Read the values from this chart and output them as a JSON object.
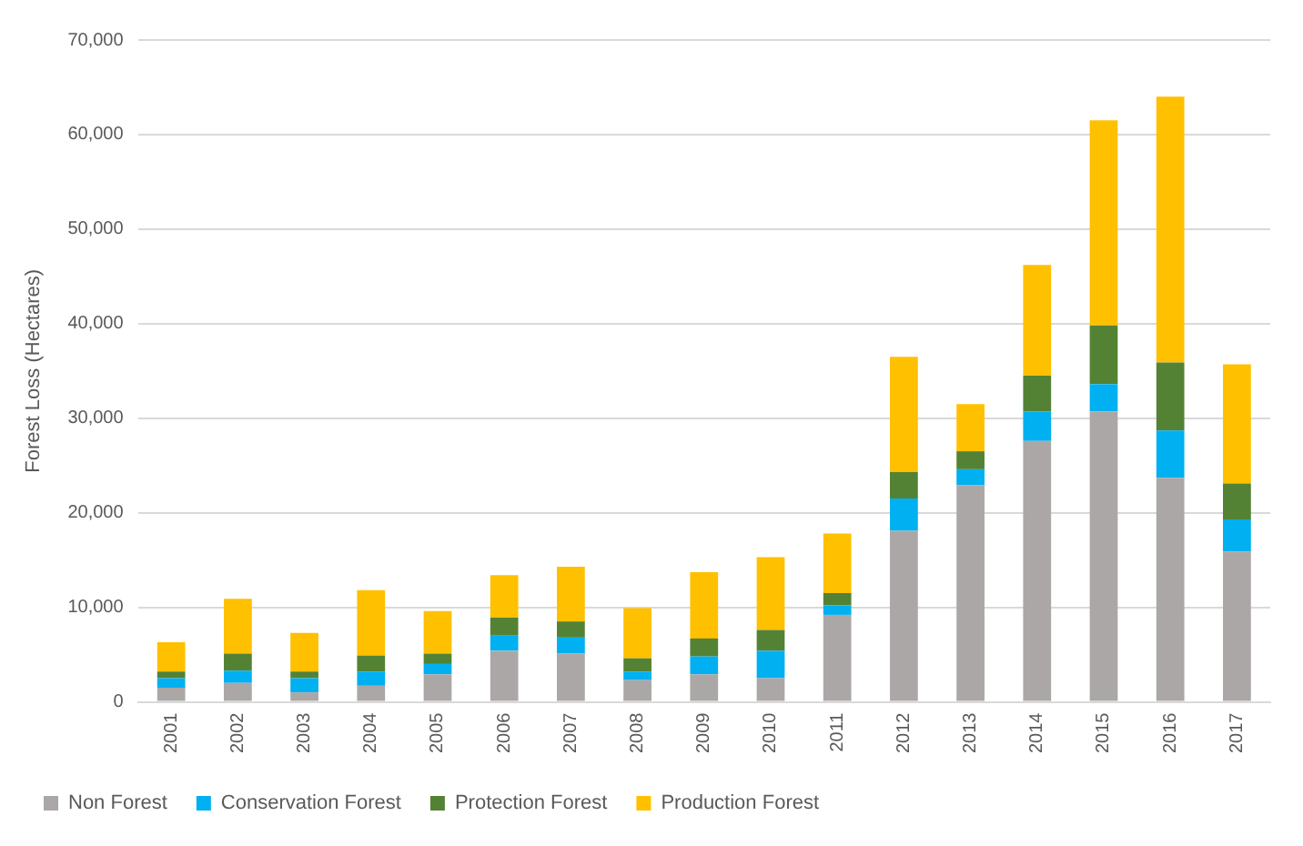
{
  "chart_data": {
    "type": "bar",
    "stacked": true,
    "ylabel": "Forest Loss (Hectares)",
    "categories": [
      "2001",
      "2002",
      "2003",
      "2004",
      "2005",
      "2006",
      "2007",
      "2008",
      "2009",
      "2010",
      "2011",
      "2012",
      "2013",
      "2014",
      "2015",
      "2016",
      "2017"
    ],
    "series": [
      {
        "name": "Non Forest",
        "color": "#aba7a6",
        "values": [
          1500,
          2000,
          1000,
          1700,
          2900,
          5400,
          5100,
          2300,
          2900,
          2500,
          9200,
          18100,
          22900,
          27600,
          30700,
          23700,
          15900
        ]
      },
      {
        "name": "Conservation Forest",
        "color": "#00b0f0",
        "values": [
          1000,
          1300,
          1500,
          1500,
          1100,
          1600,
          1700,
          900,
          1900,
          2900,
          1000,
          3400,
          1700,
          3100,
          2900,
          5000,
          3400
        ]
      },
      {
        "name": "Protection Forest",
        "color": "#548235",
        "values": [
          700,
          1800,
          700,
          1700,
          1100,
          1900,
          1700,
          1400,
          1900,
          2200,
          1300,
          2800,
          1900,
          3800,
          6200,
          7200,
          3800
        ]
      },
      {
        "name": "Production Forest",
        "color": "#ffc000",
        "values": [
          3100,
          5800,
          4100,
          6900,
          4500,
          4500,
          5800,
          5300,
          7000,
          7700,
          6300,
          12200,
          5000,
          11700,
          21700,
          28100,
          12600
        ]
      }
    ],
    "ylim": [
      0,
      70000
    ],
    "yticks": [
      0,
      {
        "value": 10000,
        "label": "10,000"
      },
      {
        "value": 20000,
        "label": "20,000"
      },
      {
        "value": 30000,
        "label": "30,000"
      },
      {
        "value": 40000,
        "label": "40,000"
      },
      {
        "value": 50000,
        "label": "50,000"
      },
      {
        "value": 60000,
        "label": "60,000"
      },
      {
        "value": 70000,
        "label": "70,000"
      }
    ],
    "grid": "y",
    "legend": "bottom"
  }
}
